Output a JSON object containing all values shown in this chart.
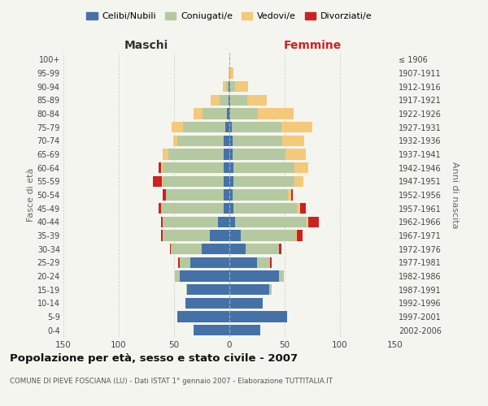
{
  "age_groups": [
    "0-4",
    "5-9",
    "10-14",
    "15-19",
    "20-24",
    "25-29",
    "30-34",
    "35-39",
    "40-44",
    "45-49",
    "50-54",
    "55-59",
    "60-64",
    "65-69",
    "70-74",
    "75-79",
    "80-84",
    "85-89",
    "90-94",
    "95-99",
    "100+"
  ],
  "birth_years": [
    "2002-2006",
    "1997-2001",
    "1992-1996",
    "1987-1991",
    "1982-1986",
    "1977-1981",
    "1972-1976",
    "1967-1971",
    "1962-1966",
    "1957-1961",
    "1952-1956",
    "1947-1951",
    "1942-1946",
    "1937-1941",
    "1932-1936",
    "1927-1931",
    "1922-1926",
    "1917-1921",
    "1912-1916",
    "1907-1911",
    "≤ 1906"
  ],
  "males": {
    "celibi": [
      32,
      47,
      40,
      38,
      45,
      35,
      25,
      18,
      10,
      5,
      5,
      5,
      5,
      5,
      5,
      4,
      2,
      1,
      1,
      0,
      0
    ],
    "coniugati": [
      0,
      0,
      0,
      1,
      4,
      10,
      28,
      42,
      50,
      57,
      52,
      55,
      55,
      50,
      42,
      38,
      22,
      8,
      2,
      0,
      0
    ],
    "vedovi": [
      0,
      0,
      0,
      0,
      0,
      0,
      0,
      0,
      0,
      0,
      0,
      1,
      2,
      5,
      4,
      10,
      8,
      8,
      3,
      1,
      0
    ],
    "divorziati": [
      0,
      0,
      0,
      0,
      0,
      1,
      1,
      2,
      2,
      2,
      3,
      8,
      2,
      0,
      0,
      0,
      0,
      0,
      0,
      0,
      0
    ]
  },
  "females": {
    "nubili": [
      28,
      52,
      30,
      36,
      45,
      25,
      15,
      10,
      5,
      4,
      3,
      4,
      4,
      3,
      3,
      2,
      1,
      1,
      1,
      0,
      0
    ],
    "coniugate": [
      0,
      0,
      0,
      2,
      4,
      12,
      30,
      50,
      65,
      57,
      50,
      55,
      55,
      48,
      45,
      45,
      25,
      15,
      4,
      1,
      0
    ],
    "vedove": [
      0,
      0,
      0,
      0,
      0,
      0,
      0,
      1,
      1,
      3,
      3,
      8,
      12,
      18,
      20,
      28,
      32,
      18,
      12,
      3,
      0
    ],
    "divorziate": [
      0,
      0,
      0,
      0,
      0,
      1,
      2,
      5,
      10,
      5,
      1,
      0,
      0,
      0,
      0,
      0,
      0,
      0,
      0,
      0,
      0
    ]
  },
  "colors": {
    "celibi": "#4472a8",
    "coniugati": "#b5c9a0",
    "vedovi": "#f5c97a",
    "divorziati": "#cc2222"
  },
  "xlim": 150,
  "title": "Popolazione per età, sesso e stato civile - 2007",
  "subtitle": "COMUNE DI PIEVE FOSCIANA (LU) - Dati ISTAT 1° gennaio 2007 - Elaborazione TUTTITALIA.IT",
  "xlabel_left": "Maschi",
  "xlabel_right": "Femmine",
  "ylabel_left": "Fasce di età",
  "ylabel_right": "Anni di nascita",
  "legend_labels": [
    "Celibi/Nubili",
    "Coniugati/e",
    "Vedovi/e",
    "Divorziati/e"
  ],
  "background_color": "#f5f5f0",
  "grid_color": "#cccccc"
}
